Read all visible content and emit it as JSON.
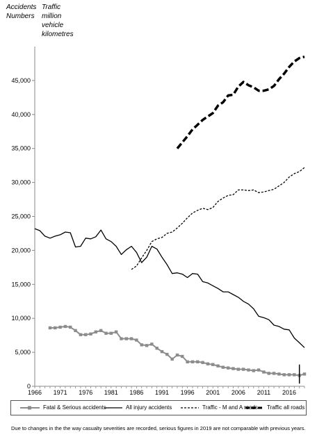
{
  "header": {
    "left": [
      "Accidents",
      "Numbers"
    ],
    "right": [
      "Traffic",
      "million",
      "vehicle",
      "kilometres"
    ]
  },
  "footnote": "Due to changes in the the way casualty severities are recorded, serious figures in 2019 are not comparable with previous years.",
  "colors": {
    "fatal_serious": "#8c8c8c",
    "lines": "#000000",
    "axis": "#888888"
  },
  "chart_data": {
    "type": "line",
    "title": "",
    "xlabel": "",
    "ylabel": "",
    "xlim": [
      1966,
      2019
    ],
    "ylim": [
      0,
      50000
    ],
    "x_ticks": [
      1966,
      1971,
      1976,
      1981,
      1986,
      1991,
      1996,
      2001,
      2006,
      2011,
      2016
    ],
    "y_ticks": [
      0,
      5000,
      10000,
      15000,
      20000,
      25000,
      30000,
      35000,
      40000,
      45000
    ],
    "y_tick_labels": [
      "0",
      "5,000",
      "10,000",
      "15,000",
      "20,000",
      "25,000",
      "30,000",
      "35,000",
      "40,000",
      "45,000"
    ],
    "grid": false,
    "legend_position": "bottom",
    "series": [
      {
        "name": "Fatal & Serious accidents",
        "style": "grey-square-markers",
        "x": [
          1969,
          1970,
          1971,
          1972,
          1973,
          1974,
          1975,
          1976,
          1977,
          1978,
          1979,
          1980,
          1981,
          1982,
          1983,
          1984,
          1985,
          1986,
          1987,
          1988,
          1989,
          1990,
          1991,
          1992,
          1993,
          1994,
          1995,
          1996,
          1997,
          1998,
          1999,
          2000,
          2001,
          2002,
          2003,
          2004,
          2005,
          2006,
          2007,
          2008,
          2009,
          2010,
          2011,
          2012,
          2013,
          2014,
          2015,
          2016,
          2017,
          2018,
          2019
        ],
        "y": [
          8600,
          8600,
          8700,
          8800,
          8700,
          8200,
          7600,
          7600,
          7700,
          8000,
          8200,
          7800,
          7800,
          8000,
          7000,
          7000,
          7000,
          6800,
          6100,
          6000,
          6200,
          5600,
          5100,
          4700,
          4000,
          4600,
          4400,
          3600,
          3600,
          3600,
          3500,
          3300,
          3200,
          3000,
          2800,
          2700,
          2600,
          2500,
          2500,
          2400,
          2300,
          2400,
          2100,
          1900,
          1900,
          1800,
          1700,
          1700,
          1700,
          1600,
          1800
        ]
      },
      {
        "name": "All injury accidents",
        "style": "solid",
        "x": [
          1966,
          1967,
          1968,
          1969,
          1970,
          1971,
          1972,
          1973,
          1974,
          1975,
          1976,
          1977,
          1978,
          1979,
          1980,
          1981,
          1982,
          1983,
          1984,
          1985,
          1986,
          1987,
          1988,
          1989,
          1990,
          1991,
          1992,
          1993,
          1994,
          1995,
          1996,
          1997,
          1998,
          1999,
          2000,
          2001,
          2002,
          2003,
          2004,
          2005,
          2006,
          2007,
          2008,
          2009,
          2010,
          2011,
          2012,
          2013,
          2014,
          2015,
          2016,
          2017,
          2018,
          2019
        ],
        "y": [
          23200,
          22900,
          22100,
          21800,
          22100,
          22300,
          22700,
          22600,
          20500,
          20600,
          21800,
          21700,
          22000,
          23000,
          21700,
          21300,
          20600,
          19400,
          20100,
          20600,
          19700,
          18200,
          19000,
          20600,
          20200,
          19000,
          17900,
          16600,
          16700,
          16500,
          16000,
          16600,
          16500,
          15400,
          15200,
          14800,
          14400,
          13900,
          13900,
          13500,
          13100,
          12500,
          12100,
          11400,
          10300,
          10100,
          9800,
          9000,
          8800,
          8400,
          8300,
          7100,
          6400,
          5700
        ]
      },
      {
        "name": "Traffic - M and A roads",
        "style": "dashed",
        "x": [
          1985,
          1986,
          1987,
          1988,
          1989,
          1990,
          1991,
          1992,
          1993,
          1994,
          1995,
          1996,
          1997,
          1998,
          1999,
          2000,
          2001,
          2002,
          2003,
          2004,
          2005,
          2006,
          2007,
          2008,
          2009,
          2010,
          2011,
          2012,
          2013,
          2014,
          2015,
          2016,
          2017,
          2018,
          2019
        ],
        "y": [
          17200,
          17700,
          18900,
          20000,
          21300,
          21700,
          21900,
          22500,
          22700,
          23300,
          24000,
          24800,
          25500,
          25900,
          26200,
          26000,
          26300,
          27200,
          27700,
          28100,
          28200,
          28900,
          28900,
          28800,
          28900,
          28500,
          28600,
          28800,
          29000,
          29500,
          30000,
          30800,
          31300,
          31600,
          32200
        ]
      },
      {
        "name": "Traffic all roads",
        "style": "thick-dashed",
        "x": [
          1994,
          1995,
          1996,
          1997,
          1998,
          1999,
          2000,
          2001,
          2002,
          2003,
          2004,
          2005,
          2006,
          2007,
          2008,
          2009,
          2010,
          2011,
          2012,
          2013,
          2014,
          2015,
          2016,
          2017,
          2018,
          2019
        ],
        "y": [
          35000,
          35900,
          36800,
          37800,
          38500,
          39200,
          39700,
          40200,
          41300,
          41800,
          42800,
          42900,
          44100,
          44800,
          44300,
          44000,
          43500,
          43500,
          43700,
          44200,
          45200,
          46000,
          47000,
          47800,
          48300,
          48500
        ]
      }
    ],
    "annotation_marker": {
      "x": 2018,
      "y_range": [
        400,
        3200
      ]
    }
  }
}
